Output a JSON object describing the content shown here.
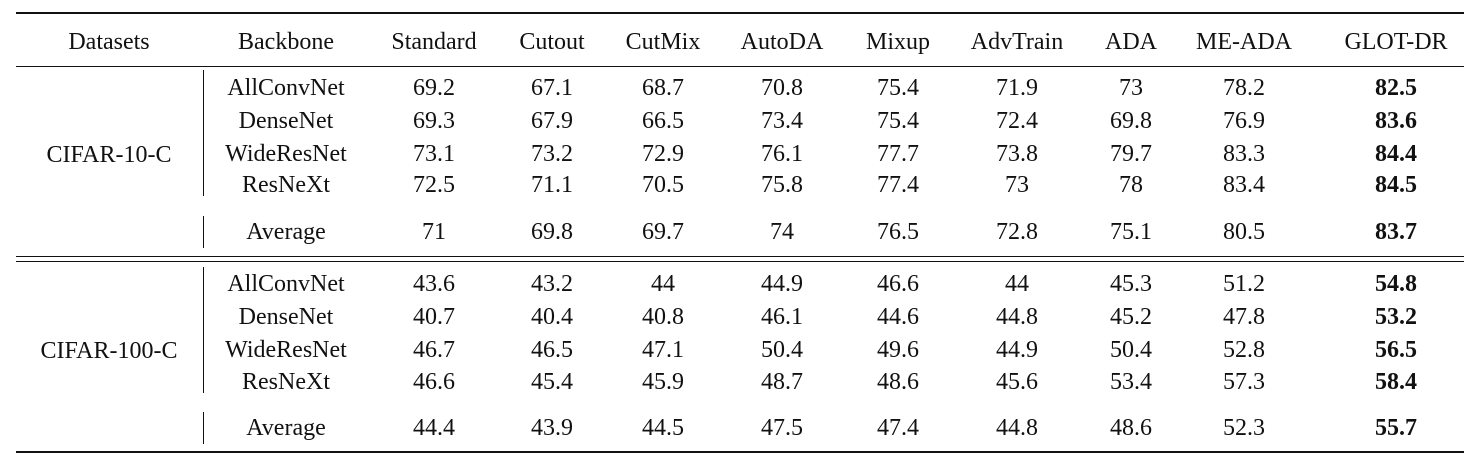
{
  "headers": [
    "Datasets",
    "Backbone",
    "Standard",
    "Cutout",
    "CutMix",
    "AutoDA",
    "Mixup",
    "AdvTrain",
    "ADA",
    "ME-ADA",
    "GLOT-DR"
  ],
  "groups": [
    {
      "dataset": "CIFAR-10-C",
      "rows": [
        {
          "backbone": "AllConvNet",
          "values": [
            "69.2",
            "67.1",
            "68.7",
            "70.8",
            "75.4",
            "71.9",
            "73",
            "78.2",
            "82.5"
          ]
        },
        {
          "backbone": "DenseNet",
          "values": [
            "69.3",
            "67.9",
            "66.5",
            "73.4",
            "75.4",
            "72.4",
            "69.8",
            "76.9",
            "83.6"
          ]
        },
        {
          "backbone": "WideResNet",
          "values": [
            "73.1",
            "73.2",
            "72.9",
            "76.1",
            "77.7",
            "73.8",
            "79.7",
            "83.3",
            "84.4"
          ]
        },
        {
          "backbone": "ResNeXt",
          "values": [
            "72.5",
            "71.1",
            "70.5",
            "75.8",
            "77.4",
            "73",
            "78",
            "83.4",
            "84.5"
          ]
        }
      ],
      "average": {
        "backbone": "Average",
        "values": [
          "71",
          "69.8",
          "69.7",
          "74",
          "76.5",
          "72.8",
          "75.1",
          "80.5",
          "83.7"
        ]
      }
    },
    {
      "dataset": "CIFAR-100-C",
      "rows": [
        {
          "backbone": "AllConvNet",
          "values": [
            "43.6",
            "43.2",
            "44",
            "44.9",
            "46.6",
            "44",
            "45.3",
            "51.2",
            "54.8"
          ]
        },
        {
          "backbone": "DenseNet",
          "values": [
            "40.7",
            "40.4",
            "40.8",
            "46.1",
            "44.6",
            "44.8",
            "45.2",
            "47.8",
            "53.2"
          ]
        },
        {
          "backbone": "WideResNet",
          "values": [
            "46.7",
            "46.5",
            "47.1",
            "50.4",
            "49.6",
            "44.9",
            "50.4",
            "52.8",
            "56.5"
          ]
        },
        {
          "backbone": "ResNeXt",
          "values": [
            "46.6",
            "45.4",
            "45.9",
            "48.7",
            "48.6",
            "45.6",
            "53.4",
            "57.3",
            "58.4"
          ]
        }
      ],
      "average": {
        "backbone": "Average",
        "values": [
          "44.4",
          "43.9",
          "44.5",
          "47.5",
          "47.4",
          "44.8",
          "48.6",
          "52.3",
          "55.7"
        ]
      }
    }
  ],
  "bold_column": "GLOT-DR"
}
